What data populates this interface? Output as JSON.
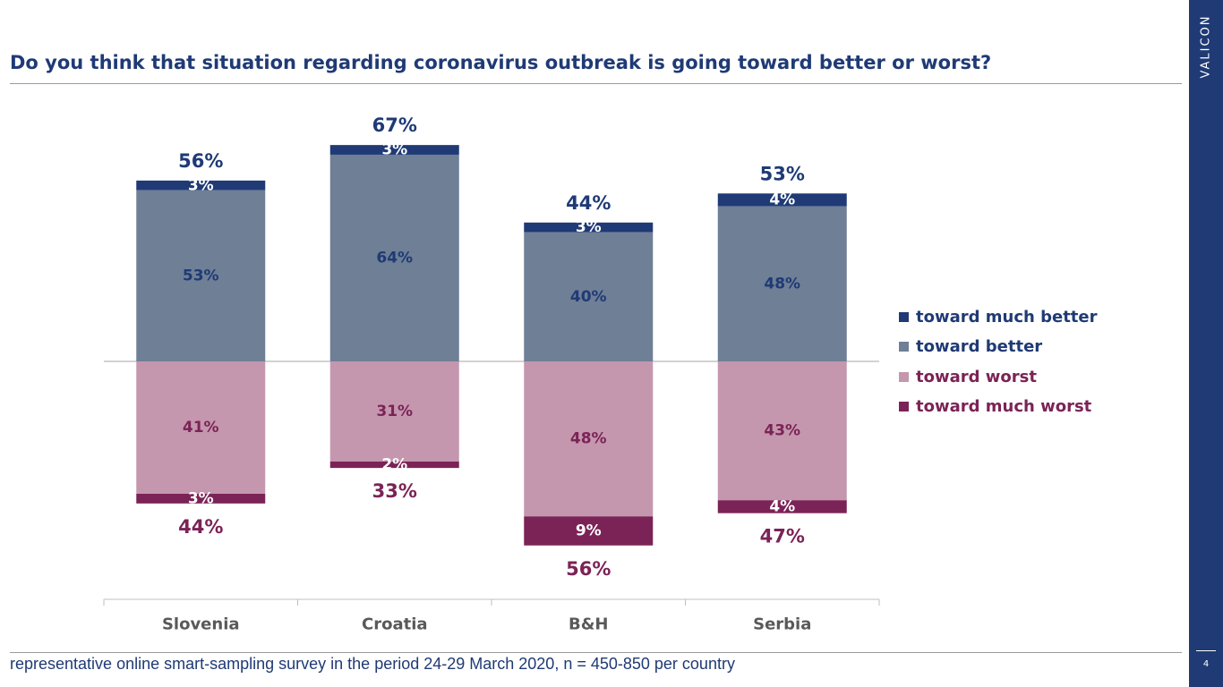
{
  "title": "Do you think that situation regarding coronavirus outbreak is going toward better or worst?",
  "brand": "VALICON",
  "page_number": "4",
  "footer": "representative online smart-sampling survey in the period 24-29 March 2020, n = 450-850 per country",
  "colors": {
    "much_better": "#1f3a75",
    "better": "#6e7f96",
    "worst": "#c497ae",
    "much_worst": "#7b2356",
    "positive_text": "#1f3a75",
    "negative_text": "#7b2356"
  },
  "chart_data": {
    "type": "bar",
    "stacked": true,
    "diverging": true,
    "title": "Do you think that situation regarding coronavirus outbreak is going toward better or worst?",
    "categories": [
      "Slovenia",
      "Croatia",
      "B&H",
      "Serbia"
    ],
    "series": [
      {
        "name": "toward much better",
        "values": [
          3,
          3,
          3,
          4
        ],
        "labels": [
          "3%",
          "3%",
          "3%",
          "4%"
        ],
        "direction": "positive"
      },
      {
        "name": "toward better",
        "values": [
          53,
          64,
          40,
          48
        ],
        "labels": [
          "53%",
          "64%",
          "40%",
          "48%"
        ],
        "direction": "positive"
      },
      {
        "name": "toward worst",
        "values": [
          41,
          31,
          48,
          43
        ],
        "labels": [
          "41%",
          "31%",
          "48%",
          "43%"
        ],
        "direction": "negative"
      },
      {
        "name": "toward much worst",
        "values": [
          3,
          2,
          9,
          4
        ],
        "labels": [
          "3%",
          "2%",
          "9%",
          "4%"
        ],
        "direction": "negative"
      }
    ],
    "totals_positive": [
      "56%",
      "67%",
      "44%",
      "53%"
    ],
    "totals_negative": [
      "44%",
      "33%",
      "56%",
      "47%"
    ],
    "legend_position": "right",
    "grid": false
  }
}
